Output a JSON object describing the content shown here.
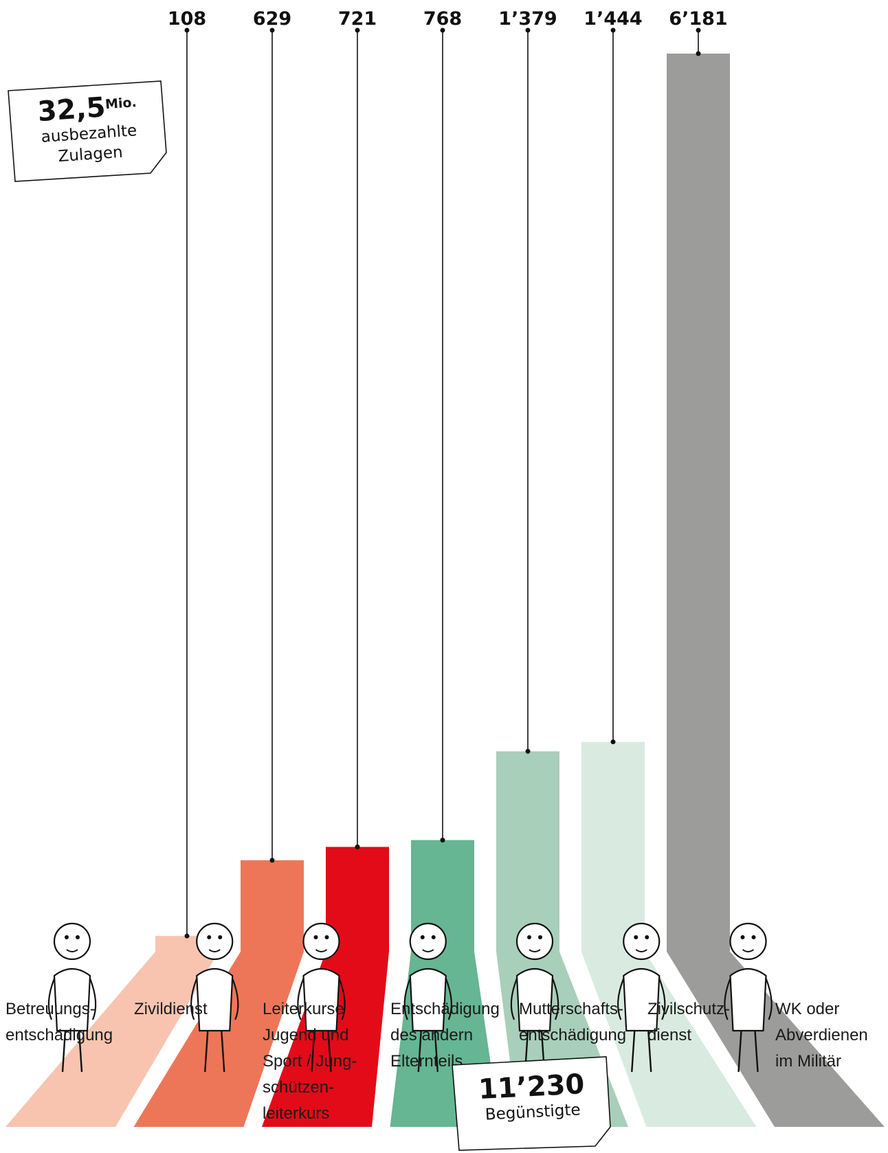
{
  "chart_data": {
    "type": "bar",
    "categories": [
      "Betreuungs-\nentschädigung",
      "Zivildienst",
      "Leiterkurse\nJugend und\nSport / Jung-\nschützen-\nleiterkurs",
      "Entschädigung\ndes andern\nElternteils",
      "Mutterschafts-\nentschädigung",
      "Zivilschutz-\ndienst",
      "WK oder\nAbverdienen\nim Militär"
    ],
    "values": [
      108,
      629,
      721,
      768,
      1379,
      1444,
      6181
    ],
    "value_labels": [
      "108",
      "629",
      "721",
      "768",
      "1’379",
      "1’444",
      "6’181"
    ],
    "colors": [
      "#f8c4b0",
      "#ee7658",
      "#e30b18",
      "#66b593",
      "#a8cfba",
      "#d9ebe1",
      "#9c9c9b"
    ],
    "ylim": [
      0,
      6181
    ],
    "grid": false,
    "legend": "none"
  },
  "stamps": {
    "total": {
      "number": "32,5",
      "unit": "Mio.",
      "line1": "ausbezahlte",
      "line2": "Zulagen"
    },
    "beneficiaries": {
      "number": "11’230",
      "label": "Begünstigte"
    }
  }
}
